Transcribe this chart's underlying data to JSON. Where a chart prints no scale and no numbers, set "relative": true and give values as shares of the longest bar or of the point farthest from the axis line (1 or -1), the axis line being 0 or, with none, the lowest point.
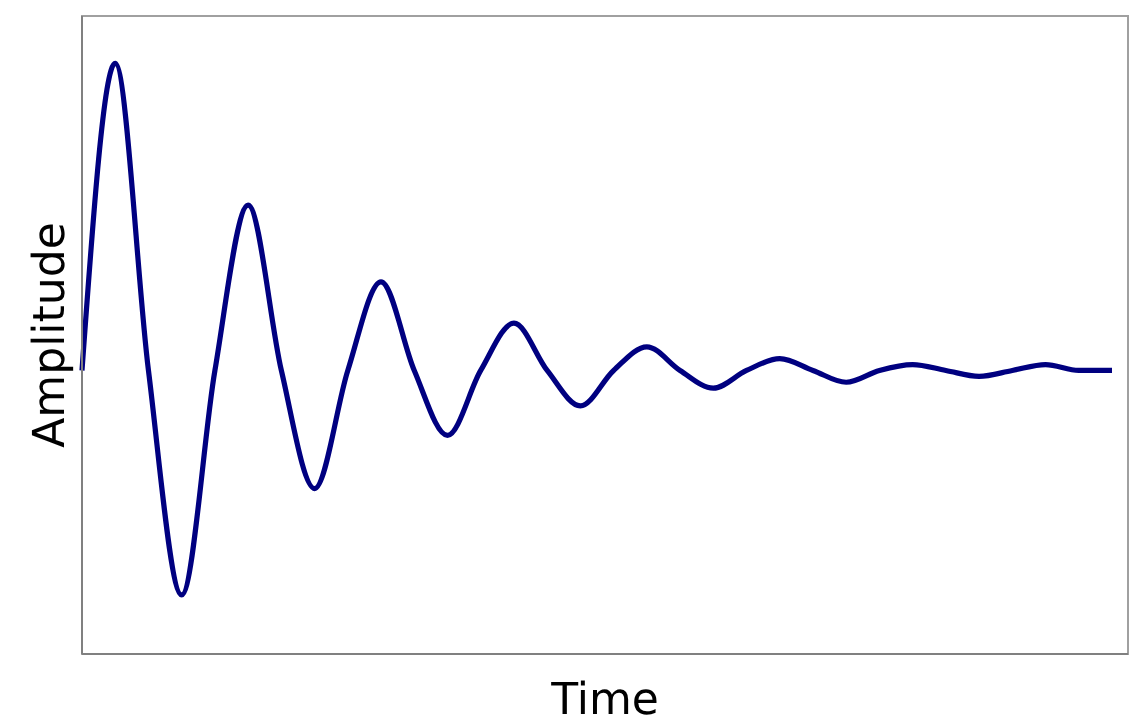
{
  "chart_data": {
    "type": "line",
    "relative": true,
    "xlabel": "Time",
    "ylabel": "Amplitude",
    "grid": false,
    "legend": false,
    "marker": "none",
    "line_style": "solid",
    "categories": [
      null,
      null,
      null,
      null,
      null,
      null,
      null,
      null,
      null,
      null,
      null,
      null,
      null,
      null,
      null,
      null,
      null,
      null,
      null,
      null,
      null,
      null,
      null,
      null,
      null,
      null,
      null,
      null,
      null,
      null,
      null,
      null
    ],
    "series": [
      {
        "color": "#000080",
        "values": [
          0.48,
          1,
          0.48,
          0.1,
          0.48,
          0.76,
          0.48,
          0.28,
          0.48,
          0.63,
          0.48,
          0.37,
          0.48,
          0.56,
          0.48,
          0.42,
          0.48,
          0.52,
          0.48,
          0.45,
          0.48,
          0.5,
          0.48,
          0.46,
          0.48,
          0.49,
          0.48,
          0.47,
          0.48,
          0.49,
          0.48,
          0.48
        ]
      }
    ]
  }
}
